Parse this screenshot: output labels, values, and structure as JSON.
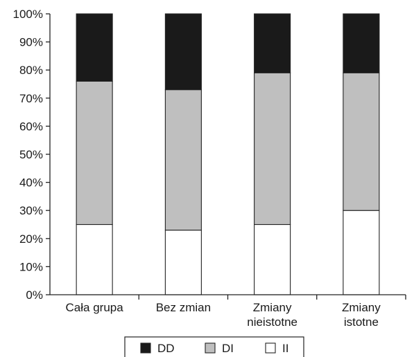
{
  "chart_data": {
    "type": "bar",
    "stacked": true,
    "categories": [
      [
        "Cała grupa"
      ],
      [
        "Bez zmian"
      ],
      [
        "Zmiany",
        "nieistotne"
      ],
      [
        "Zmiany",
        "istotne"
      ]
    ],
    "series": [
      {
        "name": "II",
        "color": "#ffffff",
        "values": [
          25,
          23,
          25,
          30
        ]
      },
      {
        "name": "DI",
        "color": "#bfbfbf",
        "values": [
          51,
          50,
          54,
          49
        ]
      },
      {
        "name": "DD",
        "color": "#1a1a1a",
        "values": [
          24,
          27,
          21,
          21
        ]
      }
    ],
    "legend_order": [
      "DD",
      "DI",
      "II"
    ],
    "legend_position": "bottom",
    "ylim": [
      0,
      100
    ],
    "y_ticks": [
      "0%",
      "10%",
      "20%",
      "30%",
      "40%",
      "50%",
      "60%",
      "70%",
      "80%",
      "90%",
      "100%"
    ],
    "grid": false,
    "title": "",
    "xlabel": "",
    "ylabel": ""
  }
}
